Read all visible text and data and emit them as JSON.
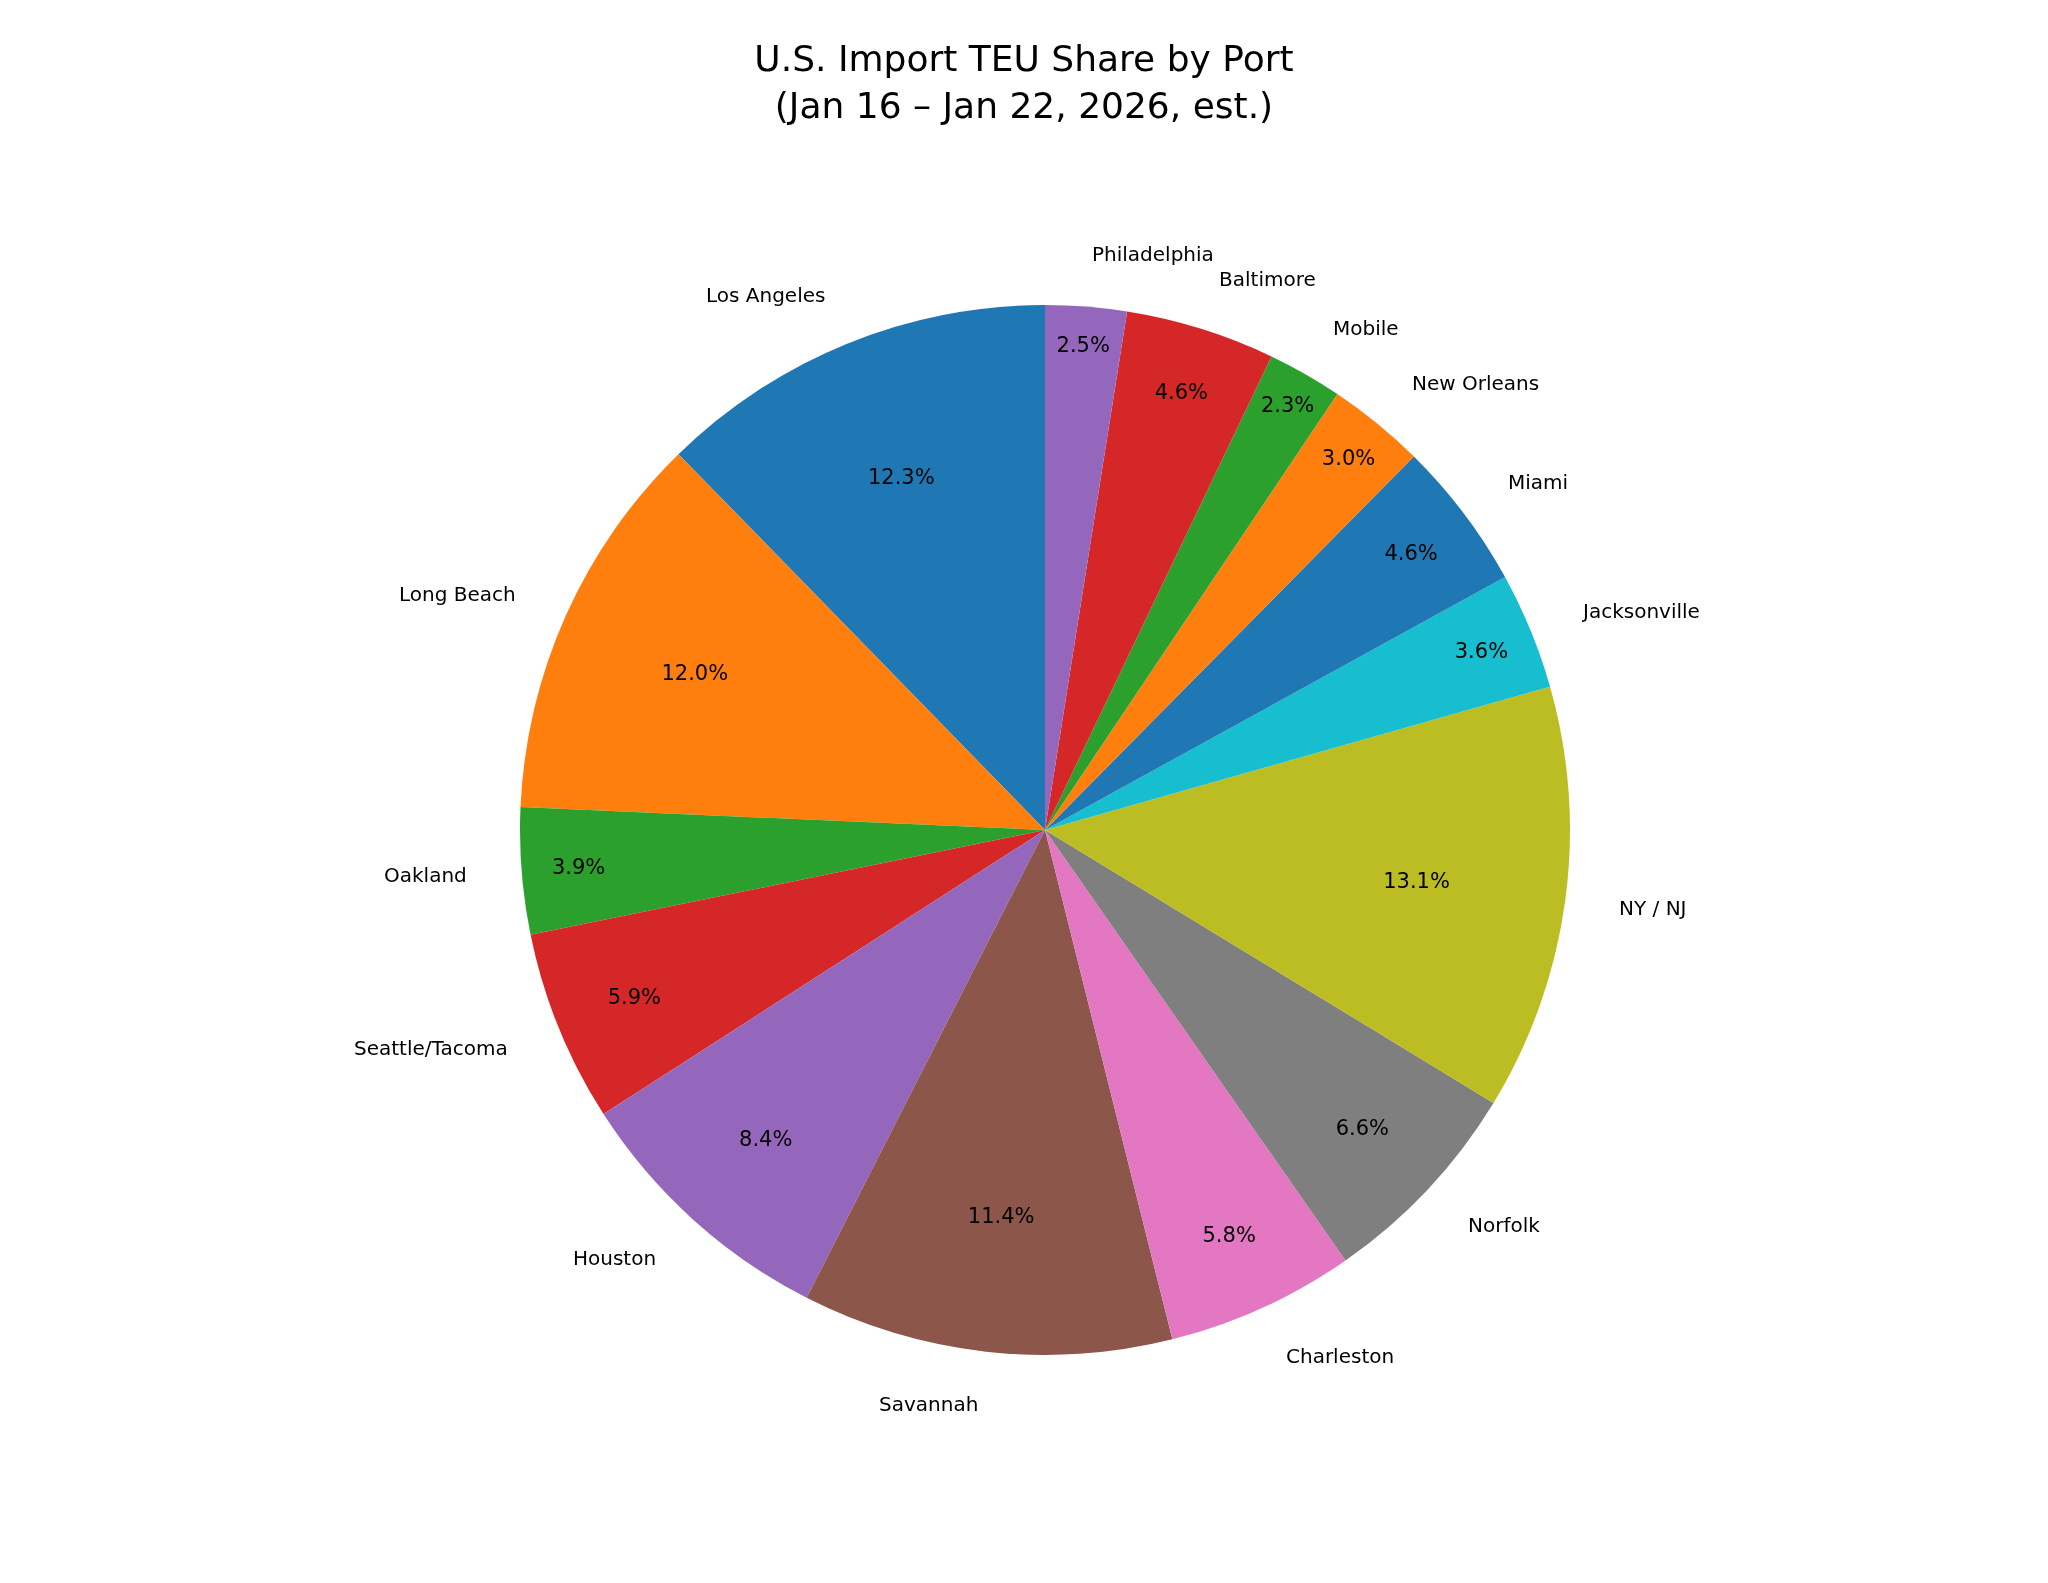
{
  "chart_data": {
    "type": "pie",
    "title": "U.S. Import TEU Share by Port\n(Jan 16 – Jan 22, 2026, est.)",
    "categories": [
      "Los Angeles",
      "Long Beach",
      "Oakland",
      "Seattle/Tacoma",
      "Houston",
      "Savannah",
      "Charleston",
      "Norfolk",
      "NY / NJ",
      "Jacksonville",
      "Miami",
      "New Orleans",
      "Mobile",
      "Baltimore",
      "Philadelphia"
    ],
    "values": [
      12.3,
      12.0,
      3.9,
      5.9,
      8.4,
      11.4,
      5.8,
      6.6,
      13.1,
      3.6,
      4.6,
      3.0,
      2.3,
      4.6,
      2.5
    ],
    "value_labels": [
      "12.3%",
      "12.0%",
      "3.9%",
      "5.9%",
      "8.4%",
      "11.4%",
      "5.8%",
      "6.6%",
      "13.1%",
      "3.6%",
      "4.6%",
      "3.0%",
      "2.3%",
      "4.6%",
      "2.5%"
    ],
    "colors": [
      "#1f77b4",
      "#ff7f0e",
      "#2ca02c",
      "#d62728",
      "#9467bd",
      "#8c564b",
      "#e377c2",
      "#7f7f7f",
      "#bcbd22",
      "#17becf",
      "#1f77b4",
      "#ff7f0e",
      "#2ca02c",
      "#d62728",
      "#9467bd"
    ],
    "legend": false
  }
}
